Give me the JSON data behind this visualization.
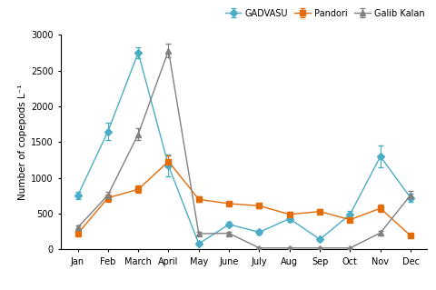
{
  "months": [
    "Jan",
    "Feb",
    "March",
    "April",
    "May",
    "June",
    "July",
    "Aug",
    "Sep",
    "Oct",
    "Nov",
    "Dec"
  ],
  "GADVASU": [
    750,
    1650,
    2750,
    1170,
    80,
    350,
    240,
    430,
    140,
    490,
    1300,
    720
  ],
  "GADVASU_err": [
    50,
    120,
    80,
    150,
    20,
    30,
    30,
    40,
    20,
    50,
    150,
    60
  ],
  "Pandori": [
    220,
    720,
    840,
    1230,
    700,
    640,
    610,
    490,
    530,
    415,
    575,
    190
  ],
  "Pandori_err": [
    20,
    50,
    50,
    80,
    40,
    30,
    30,
    30,
    30,
    30,
    50,
    20
  ],
  "Galib_Kalan": [
    305,
    760,
    1610,
    2780,
    220,
    225,
    20,
    20,
    20,
    20,
    230,
    760
  ],
  "Galib_Kalan_err": [
    30,
    50,
    80,
    100,
    20,
    20,
    5,
    5,
    5,
    5,
    30,
    60
  ],
  "color_GADVASU": "#4bacc6",
  "color_Pandori": "#e36c09",
  "color_Galib_Kalan": "#808080",
  "ylabel": "Number of copepods L⁻¹",
  "ylim": [
    0,
    3000
  ],
  "yticks": [
    0,
    500,
    1000,
    1500,
    2000,
    2500,
    3000
  ],
  "legend_labels": [
    "GADVASU",
    "Pandori",
    "Galib Kalan"
  ]
}
